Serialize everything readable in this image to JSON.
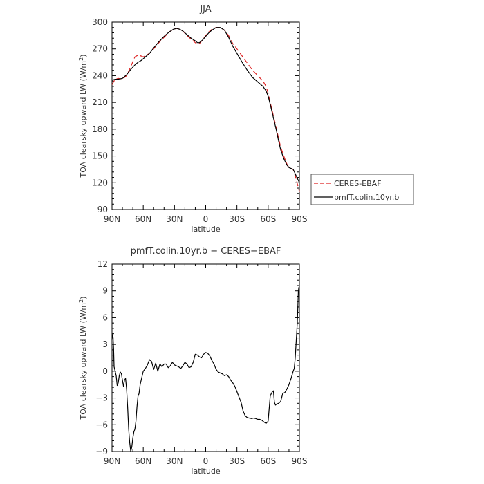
{
  "chart_data": [
    {
      "type": "line",
      "title": "JJA",
      "xlabel": "latitude",
      "ylabel_main": "TOA clearsky upward LW (W/m",
      "ylabel_sup": "2",
      "ylabel_close": ")",
      "xlim": [
        90,
        -90
      ],
      "ylim": [
        90,
        300
      ],
      "x_ticks": [
        90,
        60,
        30,
        0,
        -30,
        -60,
        -90
      ],
      "x_tick_labels": [
        "90N",
        "60N",
        "30N",
        "0",
        "30S",
        "60S",
        "90S"
      ],
      "y_ticks": [
        90,
        120,
        150,
        180,
        210,
        240,
        270,
        300
      ],
      "y_tick_labels": [
        "90",
        "120",
        "150",
        "180",
        "210",
        "240",
        "270",
        "300"
      ],
      "legend_position": "outside-right",
      "series": [
        {
          "name": "CERES-EBAF",
          "color": "#dd2222",
          "dash": "dashed",
          "x": [
            90,
            87,
            84,
            80,
            76,
            72,
            68,
            65,
            62,
            60,
            57,
            54,
            50,
            45,
            40,
            35,
            31,
            28,
            25,
            22,
            18,
            14,
            10,
            8,
            6,
            3,
            0,
            -3,
            -6,
            -10,
            -14,
            -18,
            -22,
            -26,
            -30,
            -35,
            -40,
            -45,
            -50,
            -55,
            -58,
            -60,
            -62,
            -65,
            -68,
            -70,
            -72,
            -75,
            -78,
            -80,
            -82,
            -84,
            -86,
            -88,
            -90
          ],
          "y": [
            230,
            236,
            237,
            236,
            240,
            250,
            261,
            263,
            262,
            261,
            263,
            265,
            270,
            277,
            283,
            289,
            292,
            293,
            292,
            290,
            285,
            281,
            277,
            275,
            276,
            280,
            285,
            289,
            292,
            294,
            294,
            291,
            285,
            276,
            270,
            262,
            254,
            246,
            240,
            234,
            228,
            220,
            210,
            195,
            180,
            170,
            160,
            150,
            141,
            137,
            136,
            135,
            128,
            119,
            110
          ]
        },
        {
          "name": "pmfT.colin.10yr.b",
          "color": "#000000",
          "dash": "solid",
          "x": [
            90,
            87,
            84,
            80,
            76,
            72,
            68,
            65,
            62,
            60,
            57,
            54,
            50,
            45,
            40,
            35,
            31,
            28,
            25,
            22,
            18,
            14,
            10,
            8,
            6,
            3,
            0,
            -3,
            -6,
            -10,
            -14,
            -18,
            -22,
            -26,
            -30,
            -35,
            -40,
            -45,
            -50,
            -55,
            -58,
            -60,
            -62,
            -65,
            -68,
            -70,
            -72,
            -75,
            -78,
            -80,
            -82,
            -84,
            -86,
            -88,
            -90
          ],
          "y": [
            235,
            236,
            236,
            237,
            241,
            247,
            252,
            255,
            257,
            259,
            262,
            265,
            271,
            278,
            284,
            289,
            292,
            293,
            292,
            290,
            286,
            282,
            279,
            277,
            277,
            280,
            284,
            288,
            291,
            294,
            294,
            291,
            283,
            273,
            265,
            255,
            246,
            238,
            233,
            228,
            223,
            217,
            208,
            193,
            178,
            167,
            157,
            147,
            140,
            137,
            136,
            135,
            130,
            125,
            120
          ]
        }
      ]
    },
    {
      "type": "line",
      "title": "pmfT.colin.10yr.b − CERES−EBAF",
      "xlabel": "latitude",
      "ylabel_main": "TOA clearsky upward LW (W/m",
      "ylabel_sup": "2",
      "ylabel_close": ")",
      "xlim": [
        90,
        -90
      ],
      "ylim": [
        -9,
        12
      ],
      "x_ticks": [
        90,
        60,
        30,
        0,
        -30,
        -60,
        -90
      ],
      "x_tick_labels": [
        "90N",
        "60N",
        "30N",
        "0",
        "30S",
        "60S",
        "90S"
      ],
      "y_ticks": [
        -9,
        -6,
        -3,
        0,
        3,
        6,
        9,
        12
      ],
      "y_tick_labels": [
        "−9",
        "−6",
        "−3",
        "0",
        "3",
        "6",
        "9",
        "12"
      ],
      "series": [
        {
          "color": "#000000",
          "dash": "solid",
          "x": [
            90,
            89.5,
            89,
            88.5,
            88,
            87,
            86,
            85,
            84,
            83,
            82,
            81,
            80,
            79,
            78,
            77,
            76,
            75,
            74,
            73,
            72,
            71,
            70,
            69,
            68,
            67,
            66,
            65,
            64,
            63,
            62,
            61,
            60,
            58,
            56,
            54,
            52,
            50,
            48,
            46,
            44,
            42,
            40,
            38,
            36,
            34,
            32,
            30,
            28,
            26,
            24,
            22,
            20,
            18,
            16,
            14,
            12,
            10,
            8,
            6,
            4,
            2,
            0,
            -2,
            -4,
            -6,
            -8,
            -10,
            -12,
            -14,
            -16,
            -18,
            -20,
            -22,
            -24,
            -26,
            -28,
            -30,
            -32,
            -34,
            -36,
            -38,
            -40,
            -42,
            -44,
            -46,
            -48,
            -50,
            -52,
            -54,
            -56,
            -58,
            -60,
            -61,
            -62,
            -63,
            -64,
            -65,
            -66,
            -67,
            -68,
            -70,
            -72,
            -74,
            -76,
            -78,
            -80,
            -82,
            -84,
            -85,
            -86,
            -87,
            -88,
            -88.5,
            -89,
            -89.5,
            -90
          ],
          "y": [
            3.5,
            4.1,
            3.8,
            2.5,
            0.5,
            0.0,
            -0.5,
            -1.6,
            -1.3,
            -0.5,
            -0.1,
            -0.3,
            -1.0,
            -1.7,
            -1.0,
            -0.8,
            -2.0,
            -4.0,
            -6.5,
            -8.0,
            -9.0,
            -8.5,
            -7.5,
            -6.8,
            -6.5,
            -5.6,
            -4.0,
            -2.8,
            -2.5,
            -1.5,
            -1.0,
            -0.5,
            0.0,
            0.3,
            0.7,
            1.3,
            1.1,
            0.2,
            0.9,
            0.0,
            0.8,
            0.5,
            0.8,
            0.8,
            0.4,
            0.6,
            1.0,
            0.7,
            0.6,
            0.5,
            0.3,
            0.6,
            1.0,
            0.8,
            0.4,
            0.5,
            1.0,
            1.9,
            1.8,
            1.6,
            1.5,
            1.9,
            2.1,
            2.0,
            1.7,
            1.2,
            0.8,
            0.2,
            -0.1,
            -0.2,
            -0.3,
            -0.5,
            -0.4,
            -0.6,
            -1.0,
            -1.3,
            -1.7,
            -2.3,
            -2.9,
            -3.5,
            -4.5,
            -5.0,
            -5.2,
            -5.25,
            -5.3,
            -5.25,
            -5.3,
            -5.4,
            -5.4,
            -5.5,
            -5.7,
            -5.85,
            -5.6,
            -4.2,
            -2.8,
            -2.5,
            -2.3,
            -2.2,
            -3.5,
            -3.8,
            -3.7,
            -3.6,
            -3.4,
            -2.5,
            -2.4,
            -2.0,
            -1.5,
            -0.8,
            0.0,
            0.3,
            1.5,
            3.5,
            5.5,
            7.0,
            9.0,
            9.4,
            9.5
          ]
        }
      ]
    }
  ]
}
